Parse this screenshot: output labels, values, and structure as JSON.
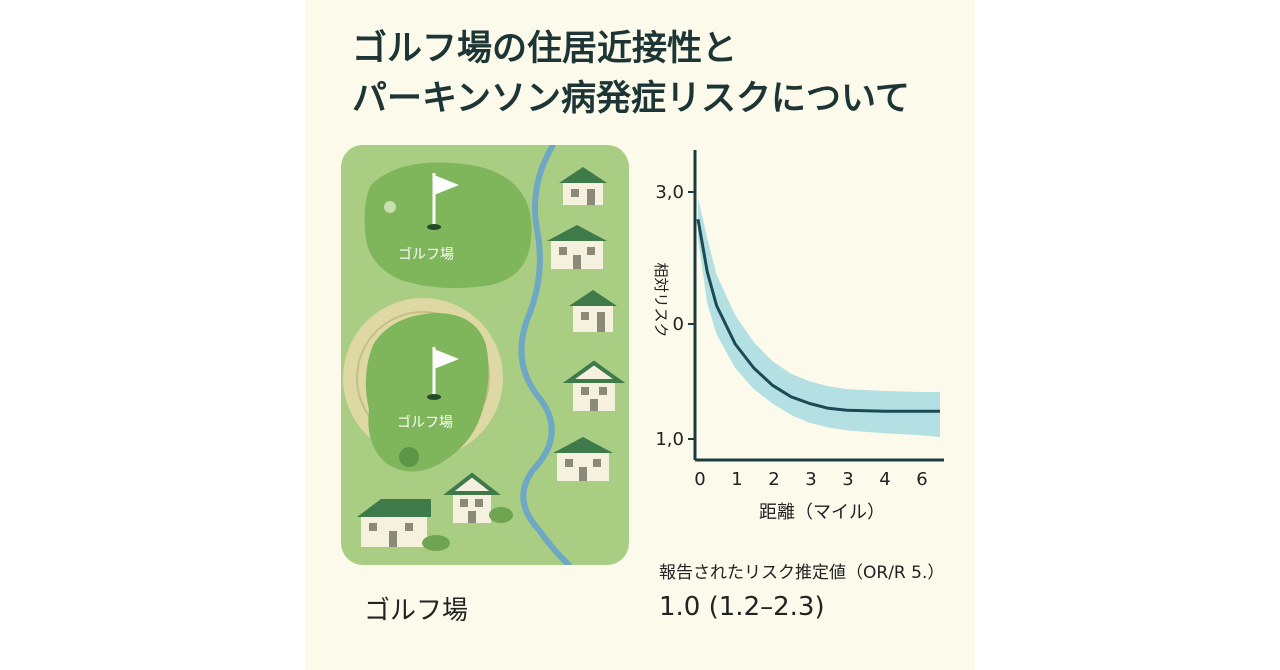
{
  "title": {
    "line1": "ゴルフ場の住居近接性と",
    "line2": "パーキンソン病発症リスクについて"
  },
  "map": {
    "course_label_1": "ゴルフ場",
    "course_label_2": "ゴルフ場",
    "caption": "ゴルフ場",
    "icons": [
      "flag-icon",
      "flag-icon",
      "house-icon",
      "house-icon",
      "house-icon",
      "house-icon",
      "house-icon",
      "house-icon",
      "house-icon",
      "river-icon"
    ]
  },
  "chart_data": {
    "type": "line",
    "xlabel": "距離（マイル）",
    "ylabel": "相対リスク",
    "x_ticks": [
      "0",
      "1",
      "2",
      "3",
      "3",
      "4",
      "6"
    ],
    "y_ticks": [
      "3,0",
      "0",
      "1,0"
    ],
    "series": [
      {
        "x": [
          0,
          0.25,
          0.5,
          1,
          1.5,
          2,
          2.5,
          3,
          3.5,
          4,
          5,
          6,
          6.5
        ],
        "y": [
          2.7,
          2.15,
          1.8,
          1.4,
          1.15,
          0.97,
          0.85,
          0.78,
          0.73,
          0.71,
          0.7,
          0.7,
          0.7
        ],
        "upper": [
          2.92,
          2.5,
          2.12,
          1.7,
          1.42,
          1.22,
          1.09,
          1.01,
          0.96,
          0.93,
          0.91,
          0.9,
          0.9
        ],
        "lower": [
          2.5,
          1.82,
          1.5,
          1.15,
          0.93,
          0.78,
          0.66,
          0.58,
          0.53,
          0.5,
          0.47,
          0.45,
          0.43
        ]
      }
    ],
    "colors": {
      "line": "#1c4a54",
      "band": "#a7dbe3"
    }
  },
  "estimate": {
    "label": "報告されたリスク推定値（OR/R 5.）",
    "value": "1.0 (1.2–2.3)"
  }
}
